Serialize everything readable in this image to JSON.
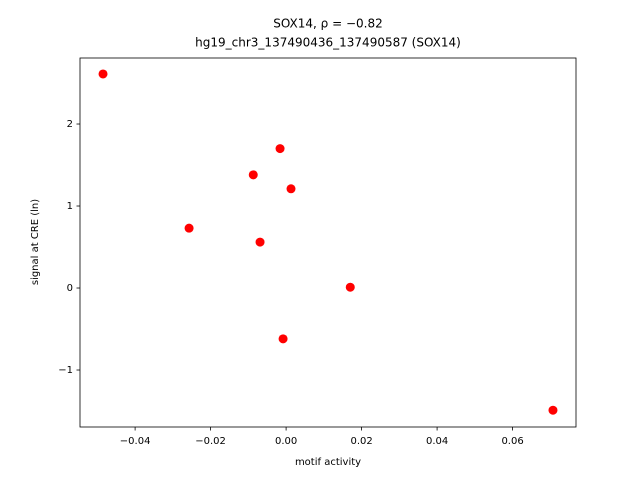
{
  "chart_data": {
    "type": "scatter",
    "title": "SOX14, ρ = −0.82",
    "subtitle": "hg19_chr3_137490436_137490587 (SOX14)",
    "x_label": "motif activity",
    "y_label": "signal at CRE (ln)",
    "color": "#ff0000",
    "series": [
      {
        "x": [
          -0.0485,
          -0.0016,
          -0.0087,
          0.0013,
          -0.0257,
          -0.0069,
          0.017,
          -0.0008,
          0.0707
        ],
        "values": [
          2.61,
          1.7,
          1.38,
          1.21,
          0.73,
          0.56,
          0.01,
          -0.62,
          -1.49
        ]
      }
    ],
    "xlim": [
      -0.0546,
      0.0768
    ],
    "ylim": [
      -1.695,
      2.805
    ],
    "xticks": [
      {
        "value": -0.04,
        "label": "−0.04"
      },
      {
        "value": -0.02,
        "label": "−0.02"
      },
      {
        "value": 0,
        "label": "0.00"
      },
      {
        "value": 0.02,
        "label": "0.02"
      },
      {
        "value": 0.04,
        "label": "0.04"
      },
      {
        "value": 0.06,
        "label": "0.06"
      }
    ],
    "yticks": [
      {
        "value": -1,
        "label": "−1"
      },
      0,
      1,
      2
    ],
    "grid": false
  }
}
